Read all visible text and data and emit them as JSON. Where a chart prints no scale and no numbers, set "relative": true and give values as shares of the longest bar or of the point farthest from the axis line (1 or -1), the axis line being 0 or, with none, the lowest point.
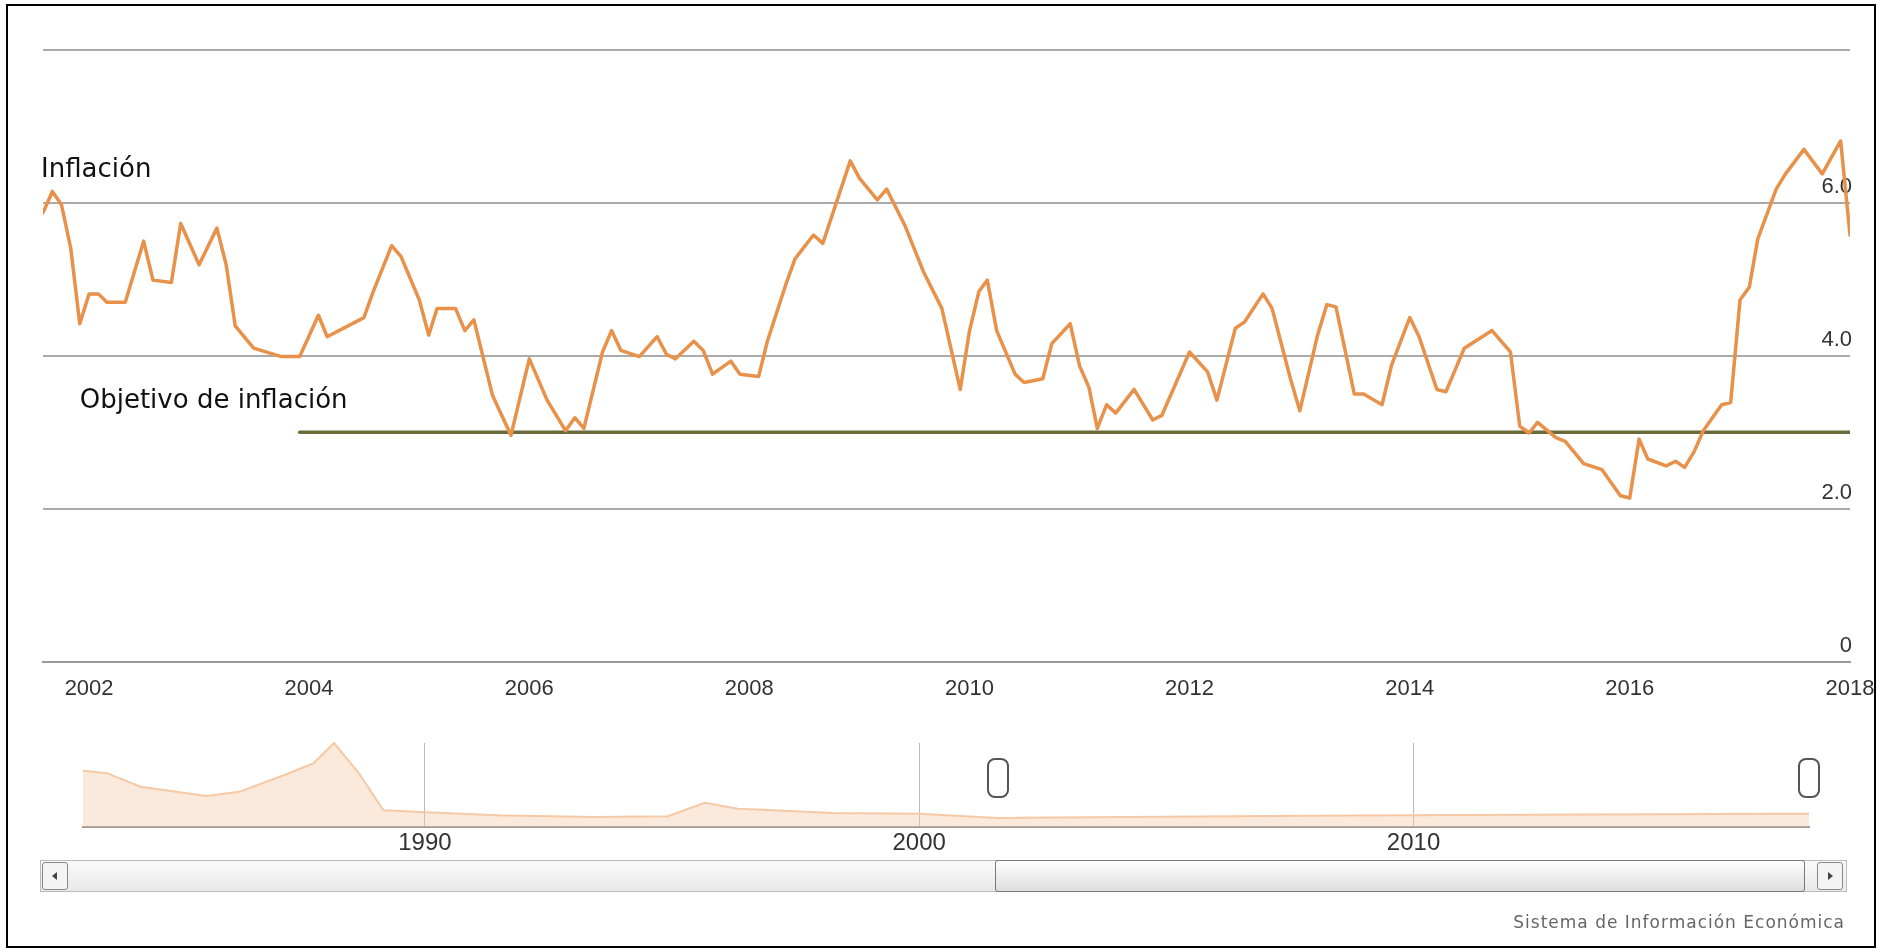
{
  "chart_data": [
    {
      "type": "line",
      "annotations": [
        "Sistema de Información Económica"
      ],
      "xlim": [
        "2001-08",
        "2018-01"
      ],
      "xticks": [
        "2002",
        "2004",
        "2006",
        "2008",
        "2010",
        "2012",
        "2014",
        "2016",
        "2018"
      ],
      "ylim": [
        0,
        8
      ],
      "yticks": [
        {
          "value": 0,
          "label": "0"
        },
        {
          "value": 2,
          "label": "2.0"
        },
        {
          "value": 4,
          "label": "4.0"
        },
        {
          "value": 6,
          "label": "6.0"
        },
        {
          "value": 8,
          "label": null
        }
      ],
      "grid": "y",
      "series": [
        {
          "name": "Inflación",
          "color": "#e8914a",
          "x": [
            "2001-08",
            "2001-09",
            "2001-10",
            "2001-11",
            "2001-12",
            "2002-01",
            "2002-02",
            "2002-03",
            "2002-05",
            "2002-07",
            "2002-08",
            "2002-10",
            "2002-11",
            "2003-01",
            "2003-03",
            "2003-04",
            "2003-05",
            "2003-07",
            "2003-10",
            "2003-12",
            "2004-02",
            "2004-03",
            "2004-07",
            "2004-08",
            "2004-10",
            "2004-11",
            "2005-01",
            "2005-02",
            "2005-03",
            "2005-05",
            "2005-06",
            "2005-07",
            "2005-09",
            "2005-11",
            "2006-01",
            "2006-03",
            "2006-05",
            "2006-06",
            "2006-07",
            "2006-09",
            "2006-10",
            "2006-11",
            "2007-01",
            "2007-03",
            "2007-04",
            "2007-05",
            "2007-07",
            "2007-08",
            "2007-09",
            "2007-11",
            "2007-12",
            "2008-02",
            "2008-03",
            "2008-05",
            "2008-06",
            "2008-08",
            "2008-09",
            "2008-12",
            "2009-01",
            "2009-03",
            "2009-04",
            "2009-06",
            "2009-08",
            "2009-10",
            "2009-12",
            "2010-01",
            "2010-02",
            "2010-03",
            "2010-04",
            "2010-06",
            "2010-07",
            "2010-09",
            "2010-10",
            "2010-12",
            "2011-01",
            "2011-02",
            "2011-03",
            "2011-04",
            "2011-05",
            "2011-07",
            "2011-09",
            "2011-10",
            "2012-01",
            "2012-03",
            "2012-04",
            "2012-06",
            "2012-07",
            "2012-09",
            "2012-10",
            "2012-12",
            "2013-01",
            "2013-03",
            "2013-04",
            "2013-05",
            "2013-07",
            "2013-08",
            "2013-10",
            "2013-11",
            "2014-01",
            "2014-02",
            "2014-04",
            "2014-05",
            "2014-07",
            "2014-10",
            "2014-12",
            "2015-01",
            "2015-02",
            "2015-03",
            "2015-05",
            "2015-06",
            "2015-08",
            "2015-10",
            "2015-12",
            "2016-01",
            "2016-02",
            "2016-03",
            "2016-05",
            "2016-06",
            "2016-07",
            "2016-08",
            "2016-09",
            "2016-11",
            "2016-12",
            "2017-01",
            "2017-02",
            "2017-03",
            "2017-05",
            "2017-06",
            "2017-08",
            "2017-10",
            "2017-12",
            "2018-01"
          ],
          "values": [
            5.87,
            6.15,
            5.98,
            5.41,
            4.42,
            4.81,
            4.81,
            4.7,
            4.7,
            5.5,
            4.99,
            4.96,
            5.73,
            5.19,
            5.67,
            5.19,
            4.39,
            4.1,
            3.99,
            3.99,
            4.53,
            4.25,
            4.5,
            4.84,
            5.44,
            5.3,
            4.73,
            4.27,
            4.62,
            4.62,
            4.33,
            4.47,
            3.48,
            2.96,
            3.96,
            3.42,
            3.02,
            3.19,
            3.05,
            4.05,
            4.33,
            4.07,
            3.99,
            4.25,
            4.02,
            3.96,
            4.19,
            4.07,
            3.76,
            3.93,
            3.76,
            3.73,
            4.19,
            4.93,
            5.27,
            5.58,
            5.47,
            6.55,
            6.32,
            6.04,
            6.18,
            5.7,
            5.1,
            4.62,
            3.56,
            4.33,
            4.84,
            4.99,
            4.33,
            3.76,
            3.65,
            3.7,
            4.16,
            4.42,
            3.87,
            3.59,
            3.05,
            3.36,
            3.25,
            3.56,
            3.16,
            3.22,
            4.05,
            3.79,
            3.42,
            4.36,
            4.44,
            4.81,
            4.62,
            3.7,
            3.28,
            4.27,
            4.67,
            4.64,
            3.5,
            3.5,
            3.36,
            3.87,
            4.5,
            4.25,
            3.56,
            3.53,
            4.1,
            4.33,
            4.05,
            3.08,
            2.99,
            3.13,
            2.93,
            2.88,
            2.59,
            2.51,
            2.17,
            2.14,
            2.91,
            2.65,
            2.56,
            2.62,
            2.54,
            2.74,
            3.02,
            3.36,
            3.39,
            4.73,
            4.9,
            5.53,
            6.18,
            6.38,
            6.7,
            6.38,
            6.81,
            5.58
          ]
        },
        {
          "name": "Objetivo de inflación",
          "type": "line",
          "color": "#6b6a3b",
          "x": [
            "2003-12",
            "2018-01"
          ],
          "values": [
            3,
            3
          ]
        }
      ]
    },
    {
      "type": "area",
      "relative": true,
      "grid": "x",
      "tick_labels": "x",
      "xlim": [
        "1983-02",
        "2018-01"
      ],
      "xticks": [
        "1990",
        "2000",
        "2010"
      ],
      "series": [
        {
          "color": "#f5c9a6",
          "x": [
            "1983-02",
            "1983-08",
            "1984-04",
            "1985-08",
            "1986-04",
            "1987-03",
            "1987-10",
            "1988-03",
            "1988-09",
            "1989-03",
            "1989-12",
            "1991-08",
            "1993-06",
            "1994-12",
            "1995-09",
            "1996-05",
            "1998-04",
            "2000-01",
            "2001-08",
            "2008-10",
            "2018-01"
          ],
          "values": [
            0.67,
            0.64,
            0.48,
            0.37,
            0.42,
            0.62,
            0.76,
            1,
            0.64,
            0.2,
            0.18,
            0.14,
            0.12,
            0.13,
            0.29,
            0.22,
            0.17,
            0.16,
            0.11,
            0.14,
            0.16
          ]
        }
      ]
    }
  ]
}
